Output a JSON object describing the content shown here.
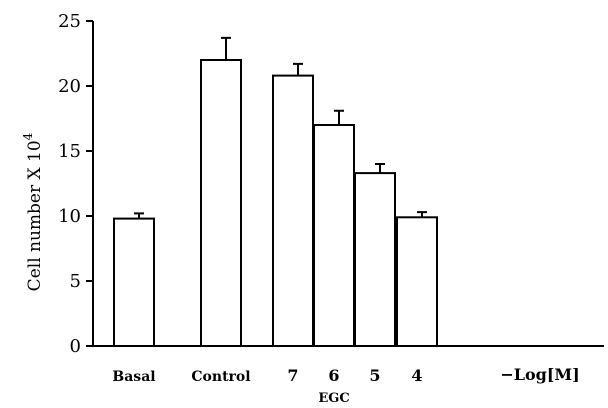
{
  "chart_data": {
    "type": "bar",
    "categories": [
      "Basal",
      "Control",
      "7",
      "6",
      "5",
      "4"
    ],
    "values": [
      9.8,
      22.0,
      20.8,
      17.0,
      13.3,
      9.9
    ],
    "errors": [
      0.4,
      1.7,
      0.9,
      1.1,
      0.7,
      0.4
    ],
    "ylabel_main": "Cell number X 10",
    "ylabel_sup": "4",
    "ylim": [
      0,
      25
    ],
    "yticks": [
      0,
      5,
      10,
      15,
      20,
      25
    ],
    "group_label": "EGC",
    "axis_note": "−Log[M]",
    "grid": false,
    "legend": "none",
    "colors": {
      "bar_fill": "#ffffff",
      "bar_stroke": "#000000"
    }
  }
}
